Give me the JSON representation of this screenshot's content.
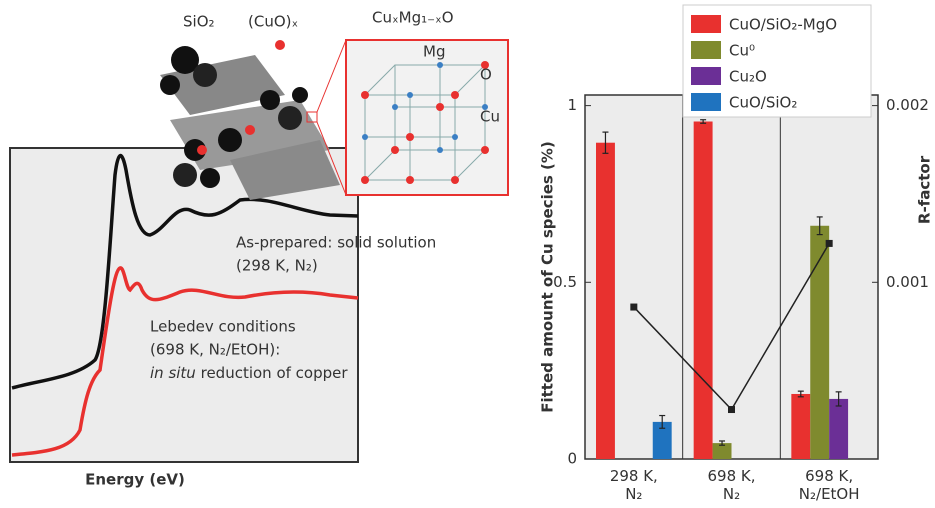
{
  "figure": {
    "illustration": {
      "silica": "SiO₂",
      "cuo": "(CuO)ₓ",
      "solid_solution": "CuₓMg₁₋ₓO",
      "mg": "Mg",
      "o": "O",
      "cu": "Cu"
    },
    "spectra": {
      "x_label": "Energy (eV)",
      "as_prepared": "As-prepared: solid solution",
      "as_prepared_cond": "(298 K, N₂)",
      "lebedev": "Lebedev conditions",
      "lebedev_cond": "(698 K, N₂/EtOH):",
      "in_situ": "in situ",
      "reduction": "reduction of copper"
    }
  },
  "chart_data": {
    "type": "bar",
    "categories": [
      "298 K, N₂",
      "698 K, N₂",
      "698 K, N₂/EtOH"
    ],
    "y_label": "Fitted amount of Cu species (%)",
    "y2_label": "R-factor",
    "ylim": [
      0,
      1.03
    ],
    "yticks": [
      0,
      0.5,
      1
    ],
    "y2lim": [
      0,
      0.00206
    ],
    "y2ticks": [
      0.001,
      0.002
    ],
    "series": [
      {
        "name": "CuO/SiO₂-MgO",
        "color": "#e8312f",
        "values": [
          0.895,
          0.955,
          0.184
        ],
        "errors": [
          0.03,
          0.005,
          0.008
        ]
      },
      {
        "name": "Cu⁰",
        "color": "#7f8a2e",
        "values": [
          null,
          0.045,
          0.66
        ],
        "errors": [
          null,
          0.006,
          0.025
        ]
      },
      {
        "name": "Cu₂O",
        "color": "#6b2f96",
        "values": [
          null,
          null,
          0.17
        ],
        "errors": [
          null,
          null,
          0.02
        ]
      },
      {
        "name": "CuO/SiO₂",
        "color": "#1f73bf",
        "values": [
          0.105,
          null,
          null
        ],
        "errors": [
          0.018,
          null,
          null
        ]
      },
      {
        "name": "R-factor",
        "type": "line",
        "axis": "y2",
        "color": "#222222",
        "values": [
          0.00086,
          0.00028,
          0.00122
        ]
      }
    ]
  }
}
